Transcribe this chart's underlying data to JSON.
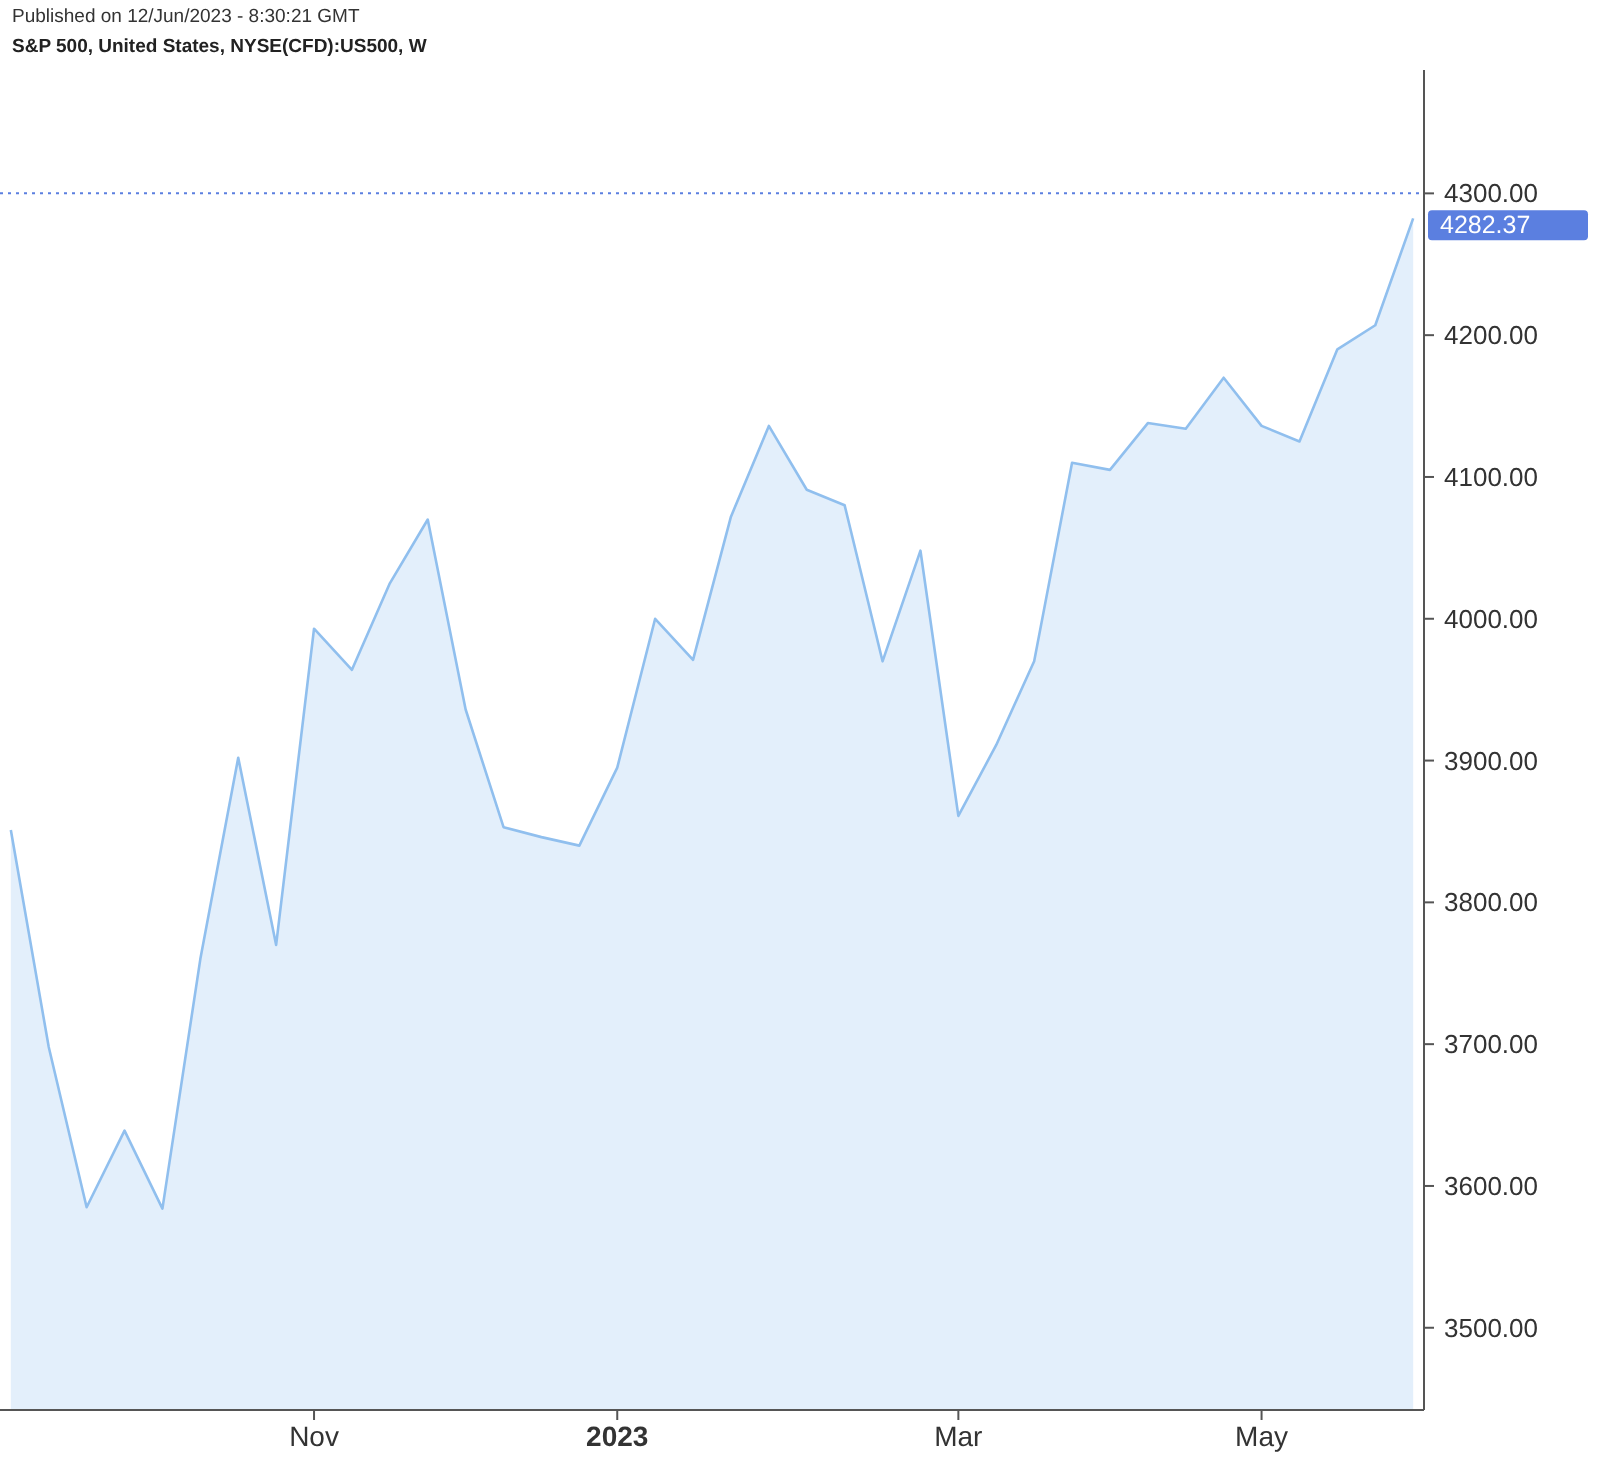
{
  "chart_data": {
    "type": "area",
    "title": "S&P 500, United States, NYSE(CFD):US500, W",
    "subtitle": "Published on 12/Jun/2023 - 8:30:21 GMT",
    "x": [
      "2022-09-12",
      "2022-09-19",
      "2022-09-26",
      "2022-10-03",
      "2022-10-10",
      "2022-10-17",
      "2022-10-24",
      "2022-10-31",
      "2022-11-07",
      "2022-11-14",
      "2022-11-21",
      "2022-11-28",
      "2022-12-05",
      "2022-12-12",
      "2022-12-19",
      "2022-12-26",
      "2023-01-02",
      "2023-01-09",
      "2023-01-16",
      "2023-01-23",
      "2023-01-30",
      "2023-02-06",
      "2023-02-13",
      "2023-02-20",
      "2023-02-27",
      "2023-03-06",
      "2023-03-13",
      "2023-03-20",
      "2023-03-27",
      "2023-04-03",
      "2023-04-10",
      "2023-04-17",
      "2023-04-24",
      "2023-05-01",
      "2023-05-08",
      "2023-05-15",
      "2023-05-22",
      "2023-05-29"
    ],
    "series": [
      {
        "color": "#90bfee",
        "values": [
          3851,
          3698,
          3585,
          3639,
          3584,
          3760,
          3902,
          3770,
          3993,
          3964,
          4025,
          4070,
          3936,
          3853,
          3846,
          3840,
          3895,
          4000,
          3971,
          4072,
          4136,
          4091,
          4080,
          3970,
          4048,
          3861,
          3911,
          3970,
          4110,
          4105,
          4138,
          4134,
          4170,
          4136,
          4125,
          4190,
          4207,
          4282.37
        ]
      }
    ],
    "xlim": [
      "2022-09-10",
      "2023-05-31"
    ],
    "xticks": [
      {
        "value": "2022-11-07",
        "label": "Nov"
      },
      {
        "value": "2023-01-02",
        "label": "2023"
      },
      {
        "value": "2023-03-06",
        "label": "Mar"
      },
      {
        "value": "2023-05-01",
        "label": "May"
      }
    ],
    "ylim": [
      3442,
      4387
    ],
    "yticks": [
      {
        "value": 3500,
        "label": "3500.00"
      },
      {
        "value": 3600,
        "label": "3600.00"
      },
      {
        "value": 3700,
        "label": "3700.00"
      },
      {
        "value": 3800,
        "label": "3800.00"
      },
      {
        "value": 3900,
        "label": "3900.00"
      },
      {
        "value": 4000,
        "label": "4000.00"
      },
      {
        "value": 4100,
        "label": "4100.00"
      },
      {
        "value": 4200,
        "label": "4200.00"
      },
      {
        "value": 4300,
        "label": "4300.00"
      }
    ],
    "ref_lines": [
      {
        "axis": "y",
        "value": 4300,
        "color": "#5b7fe0",
        "line_style": "dotted"
      }
    ],
    "annotations": [
      {
        "text": "4282.37",
        "x": "2023-05-29",
        "y": 4282.37
      }
    ],
    "grid": false,
    "marker": "none",
    "line_style": "solid"
  }
}
